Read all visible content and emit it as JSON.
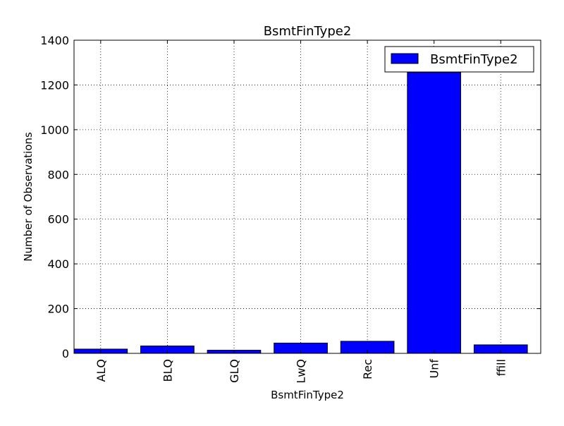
{
  "chart_data": {
    "type": "bar",
    "title": "BsmtFinType2",
    "xlabel": "BsmtFinType2",
    "ylabel": "Number of Observations",
    "categories": [
      "ALQ",
      "BLQ",
      "GLQ",
      "LwQ",
      "Rec",
      "Unf",
      "ffill"
    ],
    "series": [
      {
        "name": "BsmtFinType2",
        "values": [
          19,
          33,
          14,
          46,
          54,
          1256,
          38
        ],
        "color": "#0000ff"
      }
    ],
    "ylim": [
      0,
      1400
    ],
    "yticks": [
      0,
      200,
      400,
      600,
      800,
      1000,
      1200,
      1400
    ],
    "grid": true,
    "legend_position": "top-right"
  }
}
